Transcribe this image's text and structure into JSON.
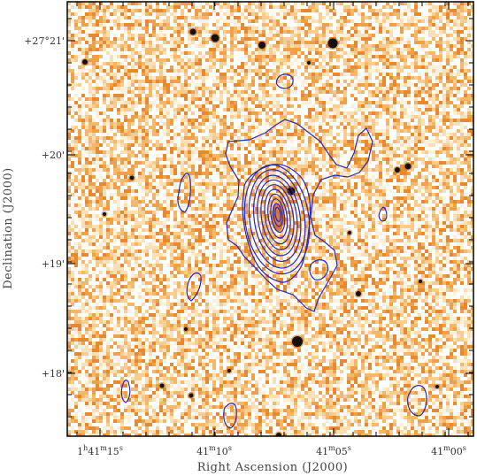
{
  "figure": {
    "xlabel": "Right Ascension (J2000)",
    "ylabel": "Declination (J2000)",
    "colors": {
      "background": "#ffffff",
      "frame": "#000000",
      "contour": "#2a2ab0",
      "sky_light": "#ffffff",
      "sky_mid": "#f7c98a",
      "sky_dark": "#e9963f"
    },
    "x_ticks": [
      {
        "h": "1",
        "m": "41",
        "s": "15"
      },
      {
        "h": "",
        "m": "41",
        "s": "10"
      },
      {
        "h": "",
        "m": "41",
        "s": "05"
      },
      {
        "h": "",
        "m": "41",
        "s": "00"
      }
    ],
    "y_ticks": [
      {
        "deg": "+27°",
        "min": "21'"
      },
      {
        "deg": "+",
        "min": "20'"
      },
      {
        "deg": "+",
        "min": "19'"
      },
      {
        "deg": "+",
        "min": "18'"
      }
    ]
  }
}
